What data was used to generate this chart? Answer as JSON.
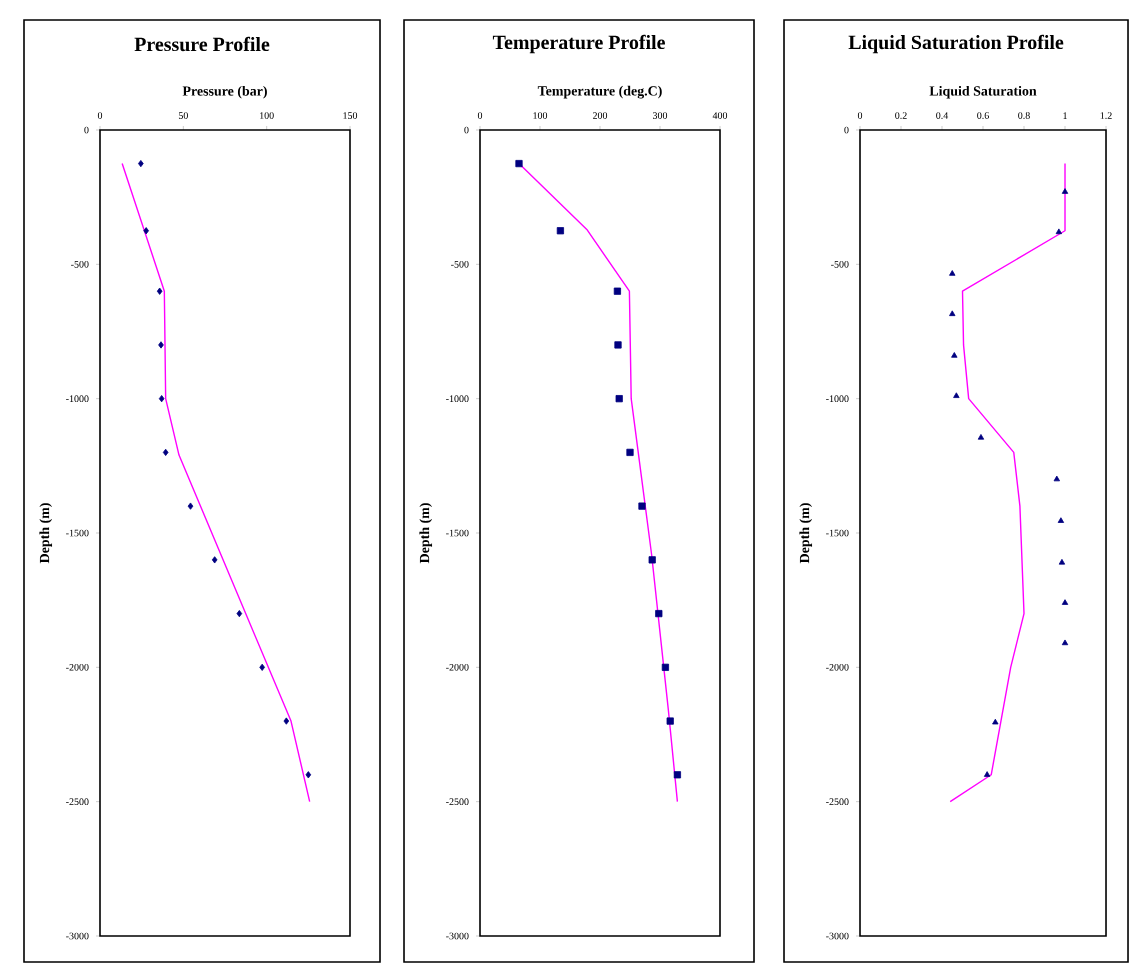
{
  "chart_data": [
    {
      "type": "scatter",
      "title": "Pressure Profile",
      "xlabel": "Pressure (bar)",
      "ylabel": "Depth (m)",
      "xlim": [
        0,
        150
      ],
      "xticks": [
        0,
        50,
        100,
        150
      ],
      "ylim": [
        -3000,
        0
      ],
      "yticks": [
        0,
        -500,
        -1000,
        -1500,
        -2000,
        -2500,
        -3000
      ],
      "grid": false,
      "series": [
        {
          "type": "line",
          "color": "#ff00ff",
          "line_style": "solid",
          "x": [
            13.3,
            38.6,
            39.4,
            47.4,
            114.6,
            125.8
          ],
          "values": [
            -125,
            -600,
            -1000,
            -1210,
            -2200,
            -2500
          ]
        },
        {
          "color": "#000080",
          "marker": "diamond",
          "x": [
            24.5,
            27.7,
            35.8,
            36.6,
            37,
            39.4,
            54.3,
            68.8,
            83.6,
            97.3,
            111.8,
            125
          ],
          "values": [
            -125,
            -375,
            -600,
            -800,
            -1000,
            -1200,
            -1400,
            -1600,
            -1800,
            -2000,
            -2200,
            -2400
          ]
        }
      ]
    },
    {
      "type": "scatter",
      "title": "Temperature Profile",
      "xlabel": "Temperature (deg.C)",
      "ylabel": "Depth (m)",
      "xlim": [
        0,
        400
      ],
      "xticks": [
        0,
        100,
        200,
        300,
        400
      ],
      "ylim": [
        -3000,
        0
      ],
      "yticks": [
        0,
        -500,
        -1000,
        -1500,
        -2000,
        -2500,
        -3000
      ],
      "grid": false,
      "series": [
        {
          "type": "line",
          "color": "#ff00ff",
          "line_style": "solid",
          "x": [
            65,
            178,
            249,
            252,
            286,
            314,
            329
          ],
          "values": [
            -125,
            -370,
            -600,
            -1000,
            -1580,
            -2160,
            -2500
          ]
        },
        {
          "color": "#000080",
          "marker": "square",
          "x": [
            65,
            134,
            229,
            230,
            232,
            250,
            270,
            287,
            298,
            309,
            317,
            329
          ],
          "values": [
            -125,
            -375,
            -600,
            -800,
            -1000,
            -1200,
            -1400,
            -1600,
            -1800,
            -2000,
            -2200,
            -2400
          ]
        }
      ]
    },
    {
      "type": "scatter",
      "title": "Liquid Saturation Profile",
      "xlabel": "Liquid Saturation",
      "ylabel": "Depth (m)",
      "xlim": [
        0,
        1.2
      ],
      "xticks": [
        0,
        0.2,
        0.4,
        0.6,
        0.8,
        1,
        1.2
      ],
      "ylim": [
        -3000,
        0
      ],
      "yticks": [
        0,
        -500,
        -1000,
        -1500,
        -2000,
        -2500,
        -3000
      ],
      "grid": false,
      "series": [
        {
          "type": "line",
          "color": "#ff00ff",
          "line_style": "solid",
          "x": [
            1.0,
            1.0,
            0.5,
            0.505,
            0.53,
            0.75,
            0.78,
            0.8,
            0.735,
            0.64,
            0.44
          ],
          "values": [
            -125,
            -375,
            -600,
            -800,
            -1000,
            -1200,
            -1400,
            -1800,
            -2000,
            -2400,
            -2500
          ]
        },
        {
          "color": "#000080",
          "marker": "triangle",
          "x": [
            1.0,
            0.97,
            0.45,
            0.45,
            0.46,
            0.47,
            0.59,
            0.96,
            0.98,
            0.985,
            1.0,
            1.0,
            0.66,
            0.62
          ],
          "values": [
            -230,
            -380,
            -535,
            -685,
            -840,
            -990,
            -1145,
            -1300,
            -1455,
            -1610,
            -1760,
            -1910,
            -2205,
            -2400
          ]
        }
      ]
    }
  ]
}
